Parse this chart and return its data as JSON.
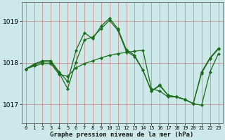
{
  "title": "Graphe pression niveau de la mer (hPa)",
  "background_color": "#cce8e8",
  "plot_bg_color": "#cce8e8",
  "grid_color": "#b0b0b0",
  "line_color": "#1a6b1a",
  "marker_color": "#1a6b1a",
  "x_labels": [
    "0",
    "1",
    "2",
    "3",
    "4",
    "5",
    "6",
    "7",
    "8",
    "9",
    "10",
    "11",
    "12",
    "13",
    "14",
    "15",
    "16",
    "17",
    "18",
    "19",
    "20",
    "21",
    "22",
    "23"
  ],
  "ylim": [
    1016.55,
    1019.45
  ],
  "yticks": [
    1017,
    1018,
    1019
  ],
  "series1": [
    1017.85,
    1017.97,
    1018.05,
    1018.05,
    1017.78,
    1017.55,
    1018.3,
    1018.72,
    1018.58,
    1018.88,
    1019.07,
    1018.82,
    1018.32,
    1018.18,
    1017.82,
    1017.32,
    1017.47,
    1017.22,
    1017.18,
    1017.12,
    1017.02,
    1017.78,
    1018.12,
    1018.35
  ],
  "series2": [
    1017.85,
    1017.92,
    1017.98,
    1017.98,
    1017.72,
    1017.68,
    1017.88,
    1017.98,
    1018.05,
    1018.12,
    1018.18,
    1018.22,
    1018.25,
    1018.28,
    1018.3,
    1017.38,
    1017.32,
    1017.18,
    1017.18,
    1017.12,
    1017.02,
    1016.98,
    1017.78,
    1018.22
  ],
  "series3": [
    1017.85,
    1017.95,
    1018.02,
    1018.02,
    1017.75,
    1017.38,
    1018.02,
    1018.55,
    1018.62,
    1018.82,
    1019.02,
    1018.78,
    1018.28,
    1018.15,
    1017.82,
    1017.32,
    1017.45,
    1017.22,
    1017.18,
    1017.12,
    1017.02,
    1017.75,
    1018.1,
    1018.33
  ]
}
